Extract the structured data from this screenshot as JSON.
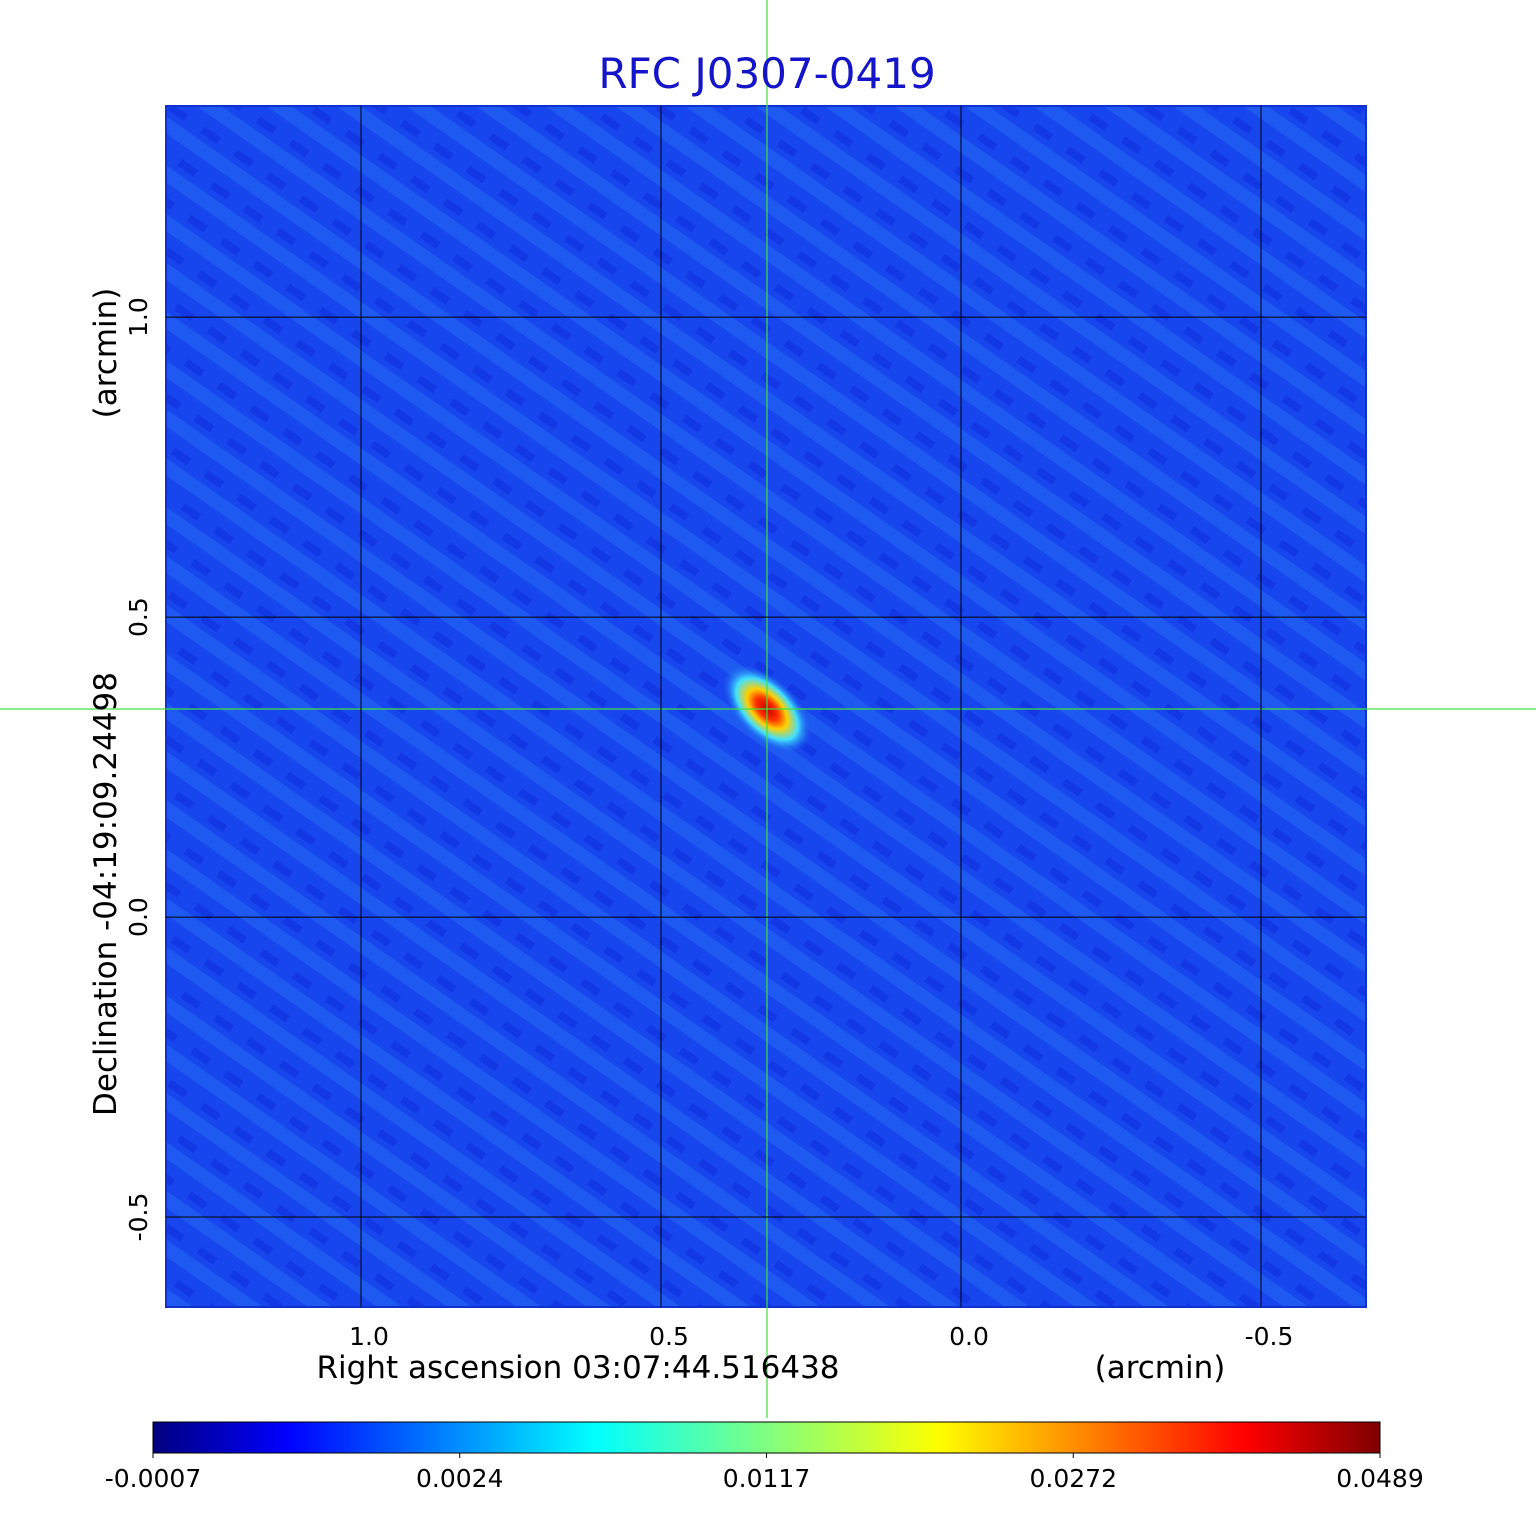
{
  "chart_data": {
    "type": "image",
    "title": "RFC J0307-0419",
    "xlabel": "Right ascension  03:07:44.516438",
    "xunit": "(arcmin)",
    "ylabel": "Declination  -04:19:09.24498",
    "yunit": "(arcmin)",
    "xlim": [
      1.325,
      -0.675
    ],
    "ylim": [
      -0.65,
      1.352
    ],
    "xticks": [
      {
        "value": 1,
        "label": "1.0"
      },
      {
        "value": 0.5,
        "label": "0.5"
      },
      {
        "value": 0,
        "label": "0.0"
      },
      {
        "value": -0.5,
        "label": "-0.5"
      }
    ],
    "yticks": [
      {
        "value": 1,
        "label": "1.0"
      },
      {
        "value": 0.5,
        "label": "0.5"
      },
      {
        "value": 0,
        "label": "0.0"
      },
      {
        "value": -0.5,
        "label": "-0.5"
      }
    ],
    "grid": true,
    "colormap": "jet",
    "colorbar_scale": "sqrt",
    "clim": [
      -0.0007,
      0.0489
    ],
    "colorbar_ticks": [
      -0.0007,
      0.0024,
      0.0117,
      0.0272,
      0.0489
    ]
  }
}
